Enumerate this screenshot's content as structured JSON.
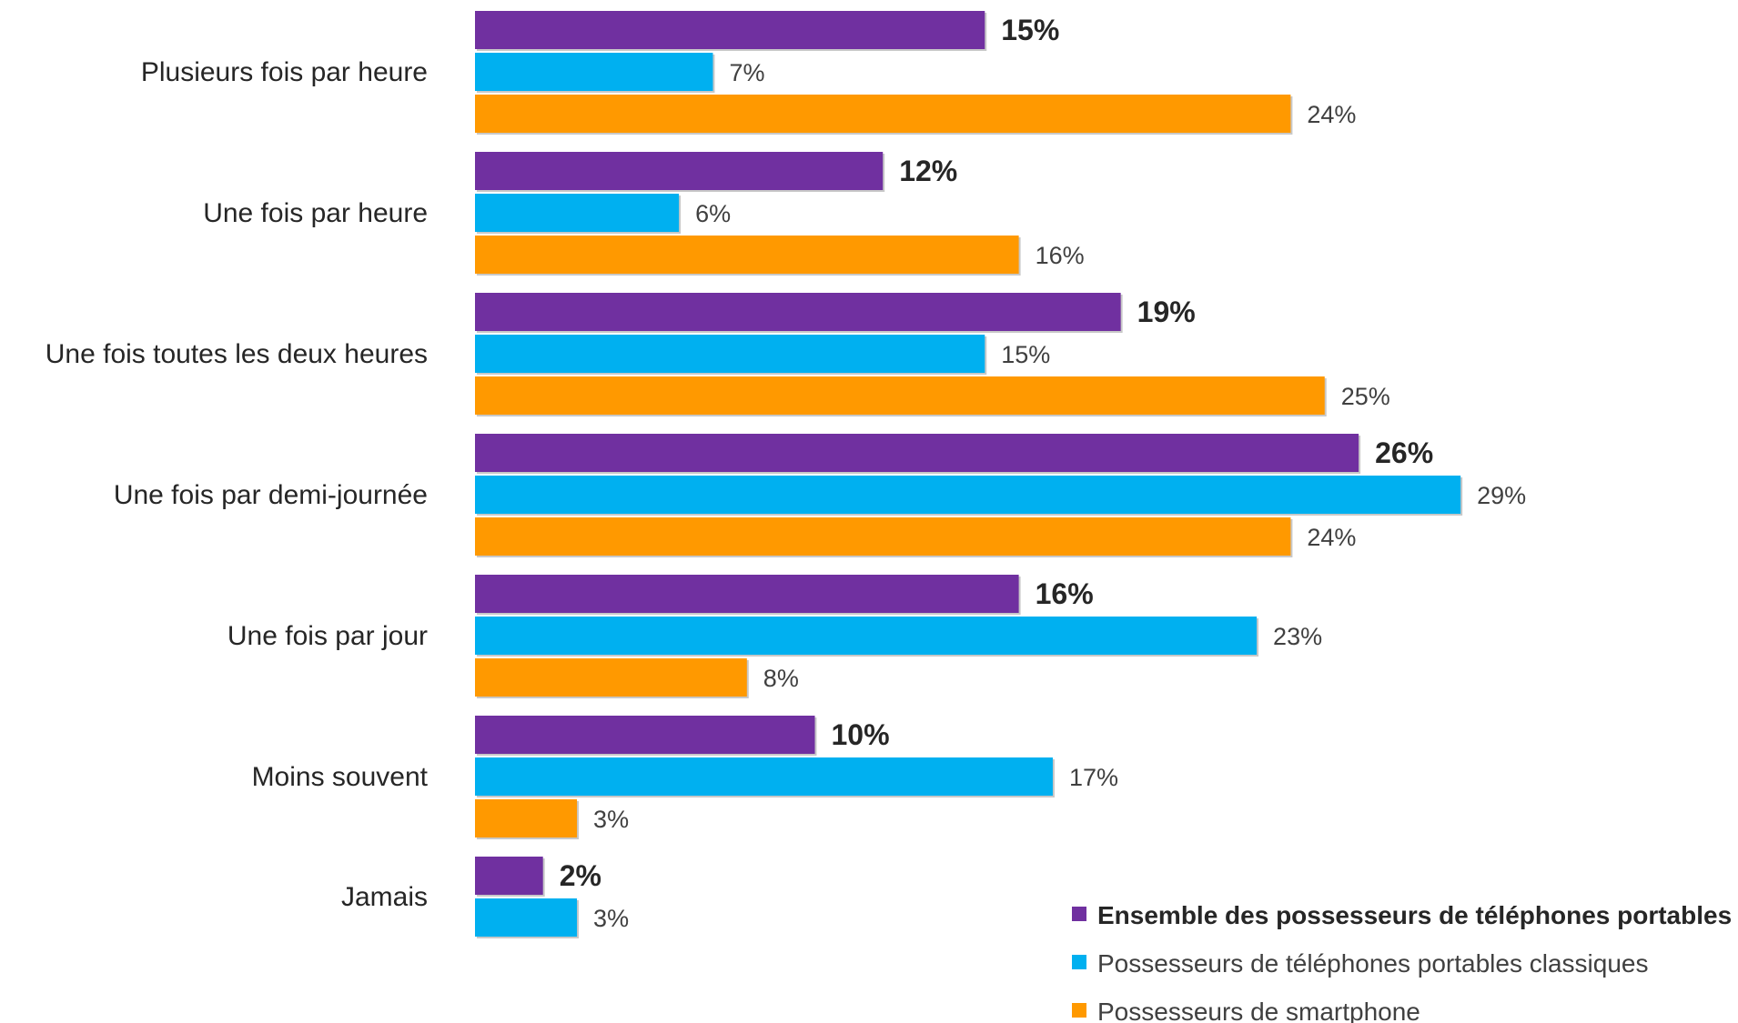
{
  "chart_data": {
    "type": "bar",
    "orientation": "horizontal",
    "title": "",
    "xlabel": "",
    "ylabel": "",
    "xlim": [
      0,
      30
    ],
    "grid": false,
    "legend_position": "bottom-right",
    "categories": [
      "Plusieurs fois par heure",
      "Une fois par heure",
      "Une fois toutes les deux heures",
      "Une fois par demi-journée",
      "Une fois par jour",
      "Moins souvent",
      "Jamais"
    ],
    "series": [
      {
        "name": "Ensemble des possesseurs de téléphones portables",
        "color": "#7030A0",
        "label_bold": true,
        "values": [
          15,
          12,
          19,
          26,
          16,
          10,
          2
        ],
        "labels": [
          "15%",
          "12%",
          "19%",
          "26%",
          "16%",
          "10%",
          "2%"
        ]
      },
      {
        "name": "Possesseurs de téléphones portables classiques",
        "color": "#00B0F0",
        "label_bold": false,
        "values": [
          7,
          6,
          15,
          29,
          23,
          17,
          3
        ],
        "labels": [
          "7%",
          "6%",
          "15%",
          "29%",
          "23%",
          "17%",
          "3%"
        ]
      },
      {
        "name": "Possesseurs de smartphone",
        "color": "#FF9900",
        "label_bold": false,
        "values": [
          24,
          16,
          25,
          24,
          8,
          3,
          null
        ],
        "labels": [
          "24%",
          "16%",
          "25%",
          "24%",
          "8%",
          "3%",
          ""
        ]
      }
    ]
  }
}
